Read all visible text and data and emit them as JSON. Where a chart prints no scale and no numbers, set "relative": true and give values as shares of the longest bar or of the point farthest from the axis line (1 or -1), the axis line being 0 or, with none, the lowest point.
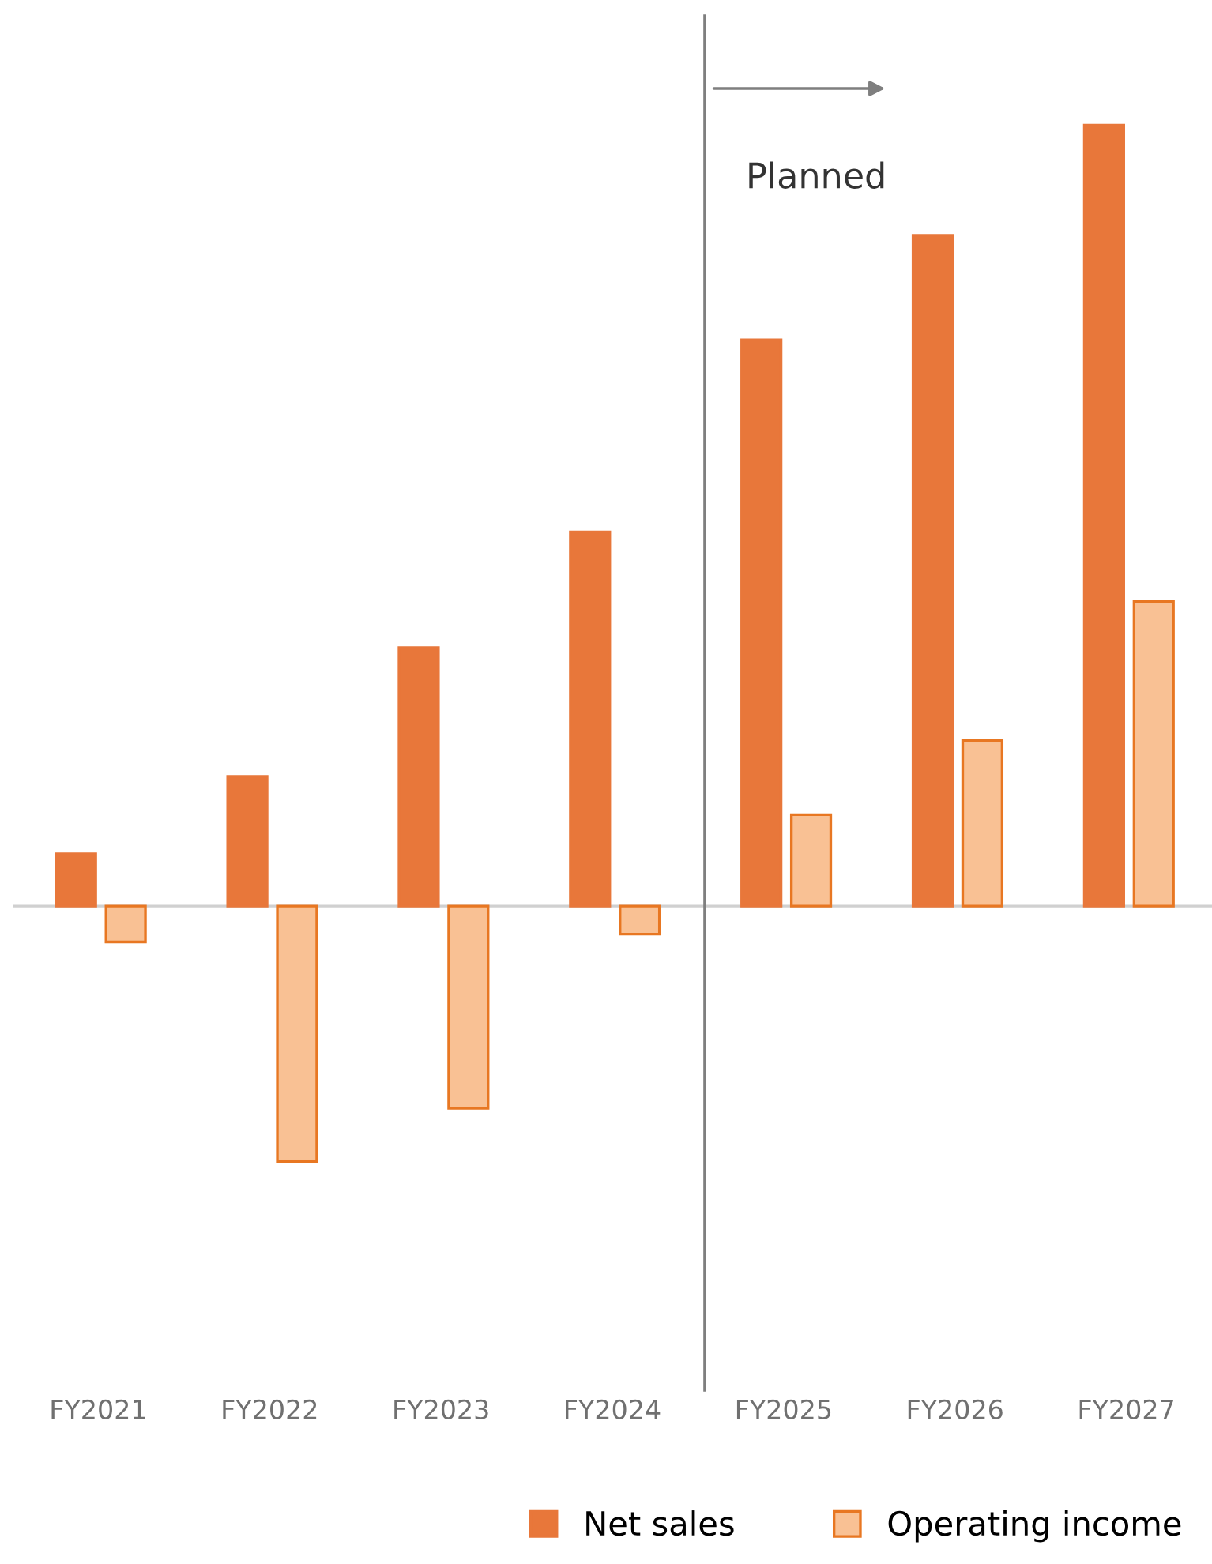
{
  "chart_data": {
    "type": "bar",
    "relative": true,
    "categories": [
      "FY2021",
      "FY2022",
      "FY2023",
      "FY2024",
      "FY2025",
      "FY2026",
      "FY2027"
    ],
    "series": [
      {
        "name": "Net sales",
        "color": "#e8773a",
        "values": [
          0.067,
          0.166,
          0.331,
          0.479,
          0.725,
          0.859,
          1
        ]
      },
      {
        "name": "Operating income",
        "color": "#f9c194",
        "values": [
          -0.046,
          -0.327,
          -0.259,
          -0.036,
          0.117,
          0.212,
          0.39
        ]
      }
    ],
    "annotations": [
      "Planned"
    ],
    "legend": "bottom",
    "grid": false
  }
}
